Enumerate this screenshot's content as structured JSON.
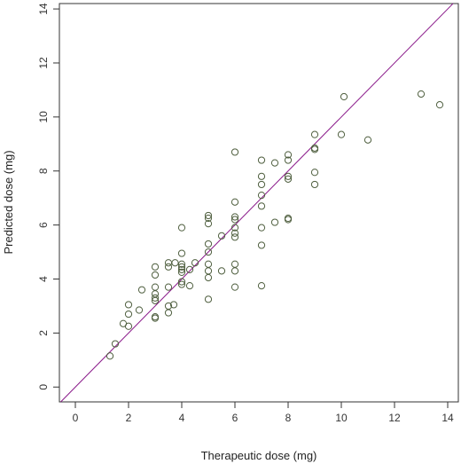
{
  "chart_data": {
    "type": "scatter",
    "xlabel": "Therapeutic dose (mg)",
    "ylabel": "Predicted dose (mg)",
    "xlim": [
      -0.6,
      14.4
    ],
    "ylim": [
      -0.55,
      14.2
    ],
    "x_ticks": [
      0,
      2,
      4,
      6,
      8,
      10,
      12,
      14
    ],
    "y_ticks": [
      0,
      2,
      4,
      6,
      8,
      10,
      12,
      14
    ],
    "reference_line": "y = x",
    "colors": {
      "points": "#4f5f3f",
      "reference_line": "#8a1a8a",
      "frame": "#333333"
    },
    "points": [
      [
        1.3,
        1.15
      ],
      [
        1.5,
        1.6
      ],
      [
        1.8,
        2.35
      ],
      [
        2.0,
        2.25
      ],
      [
        2.0,
        2.7
      ],
      [
        2.0,
        3.05
      ],
      [
        2.4,
        2.85
      ],
      [
        2.5,
        3.6
      ],
      [
        3.0,
        2.6
      ],
      [
        3.0,
        2.55
      ],
      [
        3.0,
        3.2
      ],
      [
        3.0,
        3.3
      ],
      [
        3.0,
        3.45
      ],
      [
        3.0,
        3.7
      ],
      [
        3.0,
        4.15
      ],
      [
        3.0,
        4.45
      ],
      [
        3.5,
        2.75
      ],
      [
        3.5,
        3.0
      ],
      [
        3.5,
        3.7
      ],
      [
        3.5,
        4.45
      ],
      [
        3.5,
        4.6
      ],
      [
        3.7,
        3.05
      ],
      [
        3.75,
        4.6
      ],
      [
        4.0,
        3.8
      ],
      [
        4.0,
        3.9
      ],
      [
        4.0,
        4.25
      ],
      [
        4.0,
        4.35
      ],
      [
        4.0,
        4.45
      ],
      [
        4.0,
        4.55
      ],
      [
        4.0,
        4.95
      ],
      [
        4.0,
        5.9
      ],
      [
        4.3,
        3.75
      ],
      [
        4.3,
        4.35
      ],
      [
        4.5,
        4.6
      ],
      [
        5.0,
        3.25
      ],
      [
        5.0,
        4.05
      ],
      [
        5.0,
        4.3
      ],
      [
        5.0,
        4.55
      ],
      [
        5.0,
        5.0
      ],
      [
        5.0,
        5.3
      ],
      [
        5.0,
        6.05
      ],
      [
        5.0,
        6.25
      ],
      [
        5.0,
        6.35
      ],
      [
        5.5,
        4.3
      ],
      [
        5.5,
        5.6
      ],
      [
        6.0,
        3.7
      ],
      [
        6.0,
        4.3
      ],
      [
        6.0,
        4.55
      ],
      [
        6.0,
        5.55
      ],
      [
        6.0,
        5.7
      ],
      [
        6.0,
        5.9
      ],
      [
        6.0,
        6.2
      ],
      [
        6.0,
        6.3
      ],
      [
        6.0,
        6.85
      ],
      [
        6.0,
        8.7
      ],
      [
        7.0,
        3.75
      ],
      [
        7.0,
        5.25
      ],
      [
        7.0,
        5.9
      ],
      [
        7.0,
        6.7
      ],
      [
        7.0,
        7.1
      ],
      [
        7.0,
        7.5
      ],
      [
        7.0,
        7.8
      ],
      [
        7.0,
        8.4
      ],
      [
        7.5,
        6.1
      ],
      [
        7.5,
        8.3
      ],
      [
        8.0,
        6.2
      ],
      [
        8.0,
        6.25
      ],
      [
        8.0,
        7.7
      ],
      [
        8.0,
        7.8
      ],
      [
        8.0,
        8.4
      ],
      [
        8.0,
        8.6
      ],
      [
        9.0,
        7.5
      ],
      [
        9.0,
        7.95
      ],
      [
        9.0,
        8.8
      ],
      [
        9.0,
        8.85
      ],
      [
        9.0,
        9.35
      ],
      [
        10.0,
        9.35
      ],
      [
        10.1,
        10.75
      ],
      [
        11.0,
        9.15
      ],
      [
        13.0,
        10.85
      ],
      [
        13.7,
        10.45
      ]
    ]
  }
}
